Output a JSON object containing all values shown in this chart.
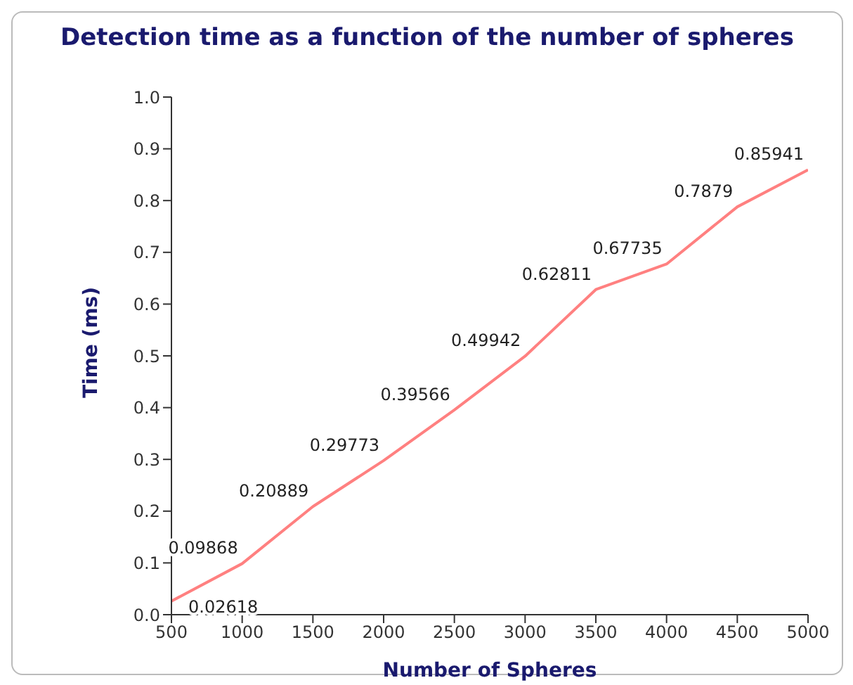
{
  "chart_data": {
    "type": "line",
    "title": "Detection time as a function of the number of spheres",
    "xlabel": "Number of Spheres",
    "ylabel": "Time (ms)",
    "x": [
      500,
      1000,
      1500,
      2000,
      2500,
      3000,
      3500,
      4000,
      4500,
      5000
    ],
    "series": [
      {
        "color": "#ff8080",
        "values": [
          0.02618,
          0.09868,
          0.20889,
          0.29773,
          0.39566,
          0.49942,
          0.62811,
          0.67735,
          0.7879,
          0.85941
        ]
      }
    ],
    "xlim": [
      500,
      5000
    ],
    "xticks": [
      500,
      1000,
      1500,
      2000,
      2500,
      3000,
      3500,
      4000,
      4500,
      5000
    ],
    "ylim": [
      0,
      1
    ],
    "yticks": [
      {
        "value": 0,
        "label": "0.0"
      },
      0.1,
      0.2,
      0.3,
      0.4,
      0.5,
      0.6,
      0.7,
      0.8,
      0.9,
      {
        "value": 1,
        "label": "1.0"
      }
    ],
    "data_labels": true,
    "grid": false,
    "legend": false,
    "marker": "none",
    "line_style": "solid"
  }
}
